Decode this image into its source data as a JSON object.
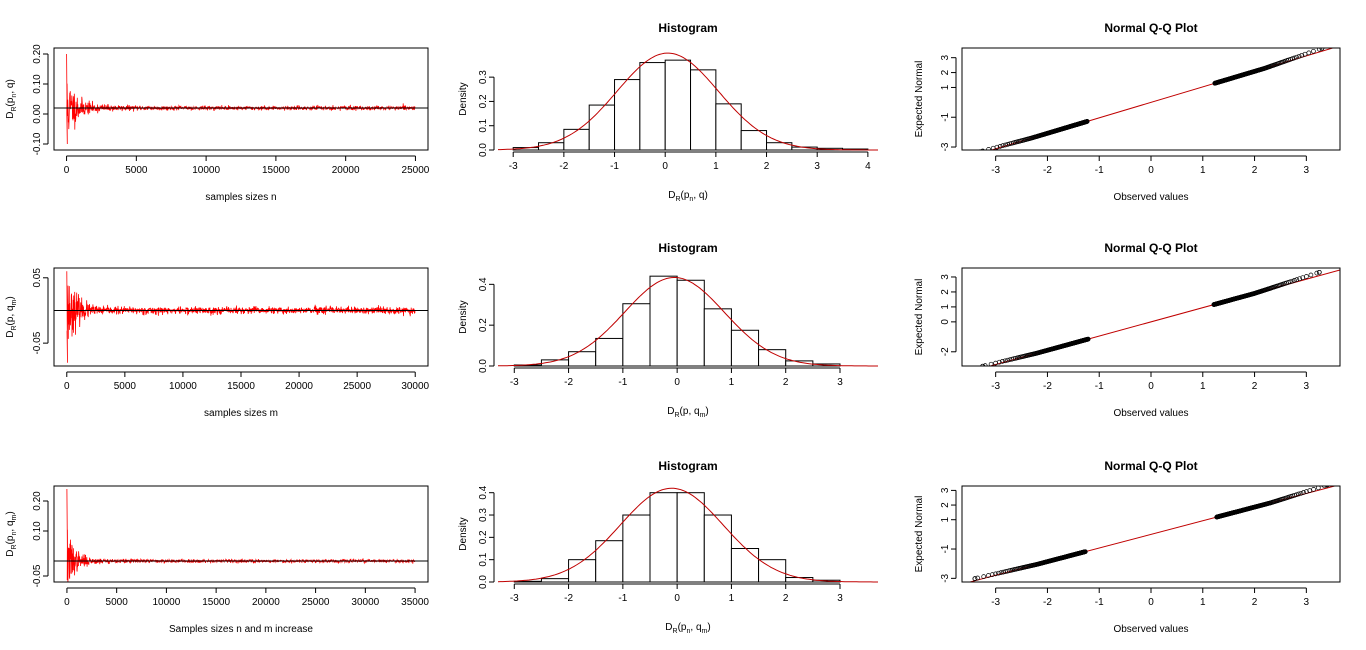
{
  "chart_data": [
    {
      "type": "line",
      "panel": "r1c1",
      "title": "",
      "xlabel": "samples sizes n",
      "ylabel_parts": [
        "D",
        "R",
        "(p",
        "n",
        ", q)"
      ],
      "xlim": [
        -900,
        25900
      ],
      "ylim": [
        -0.12,
        0.22
      ],
      "xticks": [
        0,
        5000,
        10000,
        15000,
        20000,
        25000
      ],
      "yticks": [
        -0.1,
        0.0,
        0.1,
        0.2
      ],
      "ytick_labels": [
        "-0.10",
        "0.00",
        "0.10",
        "0.20"
      ],
      "ref_line_y": 0.02,
      "series": {
        "n_max": 25000,
        "center": 0.02,
        "start": 0.2,
        "min": -0.1,
        "amp0": 0.09,
        "decay": 600,
        "floor": 0.006,
        "seed": 11
      },
      "colors": {
        "series": "#ff0000",
        "ref": "#000000"
      }
    },
    {
      "type": "bar",
      "panel": "r1c2",
      "title": "Histogram",
      "xlabel_parts": [
        "D",
        "R",
        "(p",
        "n",
        ", q)"
      ],
      "ylabel": "Density",
      "xlim": [
        -3.3,
        4.2
      ],
      "ylim": [
        0,
        0.42
      ],
      "xticks": [
        -3,
        -2,
        -1,
        0,
        1,
        2,
        3,
        4
      ],
      "yticks": [
        0,
        0.1,
        0.2,
        0.3
      ],
      "ytick_labels": [
        "0.0",
        "0.1",
        "0.2",
        "0.3"
      ],
      "bin_edges": [
        -3,
        -2.5,
        -2,
        -1.5,
        -1,
        -0.5,
        0,
        0.5,
        1,
        1.5,
        2,
        2.5,
        3,
        3.5,
        4
      ],
      "densities": [
        0.01,
        0.03,
        0.085,
        0.185,
        0.29,
        0.36,
        0.37,
        0.33,
        0.19,
        0.08,
        0.03,
        0.012,
        0.007,
        0.004
      ],
      "density_curve": {
        "mean": 0.05,
        "sd": 1.0,
        "x_range": [
          -3.3,
          4.2
        ]
      },
      "colors": {
        "bars": "#ffffff",
        "curve": "#c00000"
      }
    },
    {
      "type": "scatter",
      "panel": "r1c3",
      "title": "Normal Q-Q Plot",
      "xlabel": "Observed values",
      "ylabel": "Expected Normal",
      "xlim": [
        -3.65,
        3.65
      ],
      "ylim": [
        -3.2,
        3.65
      ],
      "xticks": [
        -3,
        -2,
        -1,
        0,
        1,
        2,
        3
      ],
      "yticks": [
        -3,
        -1,
        1,
        2,
        3
      ],
      "ref_line": {
        "slope": 1.04,
        "intercept": 0.0
      },
      "points": {
        "x_min": -3.3,
        "x_max": 3.3,
        "lower_bend": -2.3,
        "upper_bend": 2.2
      },
      "colors": {
        "points": "#000000",
        "line": "#c00000"
      }
    },
    {
      "type": "line",
      "panel": "r2c1",
      "title": "",
      "xlabel": "samples sizes m",
      "ylabel_parts": [
        "D",
        "R",
        "(p, q",
        "m",
        ")"
      ],
      "xlim": [
        -1100,
        31100
      ],
      "ylim": [
        -0.085,
        0.065
      ],
      "xticks": [
        0,
        5000,
        10000,
        15000,
        20000,
        25000,
        30000
      ],
      "yticks": [
        -0.05,
        0.05
      ],
      "ytick_labels": [
        "-0.05",
        "0.05"
      ],
      "ref_line_y": 0.0,
      "series": {
        "n_max": 30000,
        "center": 0.0,
        "start": 0.06,
        "min": -0.08,
        "amp0": 0.04,
        "decay": 900,
        "floor": 0.005,
        "seed": 23
      },
      "colors": {
        "series": "#ff0000",
        "ref": "#000000"
      }
    },
    {
      "type": "bar",
      "panel": "r2c2",
      "title": "Histogram",
      "xlabel_parts": [
        "D",
        "R",
        "(p, q",
        "m",
        ")"
      ],
      "ylabel": "Density",
      "xlim": [
        -3.3,
        3.7
      ],
      "ylim": [
        0,
        0.48
      ],
      "xticks": [
        -3,
        -2,
        -1,
        0,
        1,
        2,
        3
      ],
      "yticks": [
        0,
        0.2,
        0.4
      ],
      "ytick_labels": [
        "0.0",
        "0.2",
        "0.4"
      ],
      "bin_edges": [
        -3,
        -2.5,
        -2,
        -1.5,
        -1,
        -0.5,
        0,
        0.5,
        1,
        1.5,
        2,
        2.5,
        3
      ],
      "densities": [
        0.005,
        0.03,
        0.07,
        0.135,
        0.305,
        0.44,
        0.42,
        0.28,
        0.175,
        0.08,
        0.025,
        0.01
      ],
      "density_curve": {
        "mean": -0.05,
        "sd": 0.92,
        "x_range": [
          -3.3,
          3.7
        ]
      },
      "colors": {
        "bars": "#ffffff",
        "curve": "#c00000"
      }
    },
    {
      "type": "scatter",
      "panel": "r2c3",
      "title": "Normal Q-Q Plot",
      "xlabel": "Observed values",
      "ylabel": "Expected Normal",
      "xlim": [
        -3.65,
        3.65
      ],
      "ylim": [
        -2.95,
        3.6
      ],
      "xticks": [
        -3,
        -2,
        -1,
        0,
        1,
        2,
        3
      ],
      "yticks": [
        -2,
        0,
        1,
        2,
        3
      ],
      "ref_line": {
        "slope": 0.95,
        "intercept": 0.0
      },
      "points": {
        "x_min": -3.25,
        "x_max": 3.25,
        "lower_bend": -2.2,
        "upper_bend": 2.0
      },
      "colors": {
        "points": "#000000",
        "line": "#c00000"
      }
    },
    {
      "type": "line",
      "panel": "r3c1",
      "title": "",
      "xlabel": "Samples sizes n and m increase",
      "ylabel_parts": [
        "D",
        "R",
        "(p",
        "n",
        ", q",
        "m",
        ")"
      ],
      "xlim": [
        -1300,
        36300
      ],
      "ylim": [
        -0.07,
        0.25
      ],
      "xticks": [
        0,
        5000,
        10000,
        15000,
        20000,
        25000,
        30000,
        35000
      ],
      "yticks": [
        -0.05,
        0.1,
        0.2
      ],
      "ytick_labels": [
        "-0.05",
        "0.10",
        "0.20"
      ],
      "ref_line_y": 0.0,
      "series": {
        "n_max": 35000,
        "center": 0.0,
        "start": 0.24,
        "min": -0.06,
        "amp0": 0.08,
        "decay": 700,
        "floor": 0.005,
        "seed": 37
      },
      "colors": {
        "series": "#ff0000",
        "ref": "#000000"
      }
    },
    {
      "type": "bar",
      "panel": "r3c2",
      "title": "Histogram",
      "xlabel_parts": [
        "D",
        "R",
        "(p",
        "n",
        ", q",
        "m",
        ")"
      ],
      "ylabel": "Density",
      "xlim": [
        -3.3,
        3.7
      ],
      "ylim": [
        0,
        0.43
      ],
      "xticks": [
        -3,
        -2,
        -1,
        0,
        1,
        2,
        3
      ],
      "yticks": [
        0,
        0.1,
        0.2,
        0.3,
        0.4
      ],
      "ytick_labels": [
        "0.0",
        "0.1",
        "0.2",
        "0.3",
        "0.4"
      ],
      "bin_edges": [
        -3,
        -2.5,
        -2,
        -1.5,
        -1,
        -0.5,
        0,
        0.5,
        1,
        1.5,
        2,
        2.5,
        3
      ],
      "densities": [
        0.003,
        0.015,
        0.1,
        0.185,
        0.3,
        0.4,
        0.4,
        0.3,
        0.15,
        0.1,
        0.02,
        0.008
      ],
      "density_curve": {
        "mean": -0.1,
        "sd": 0.95,
        "x_range": [
          -3.3,
          3.7
        ]
      },
      "colors": {
        "bars": "#ffffff",
        "curve": "#c00000"
      }
    },
    {
      "type": "scatter",
      "panel": "r3c3",
      "title": "Normal Q-Q Plot",
      "xlabel": "Observed values",
      "ylabel": "Expected Normal",
      "xlim": [
        -3.65,
        3.65
      ],
      "ylim": [
        -3.25,
        3.3
      ],
      "xticks": [
        -3,
        -2,
        -1,
        0,
        1,
        2,
        3
      ],
      "yticks": [
        -3,
        -1,
        1,
        2,
        3
      ],
      "ref_line": {
        "slope": 0.93,
        "intercept": 0.0
      },
      "points": {
        "x_min": -3.4,
        "x_max": 3.4,
        "lower_bend": -2.2,
        "upper_bend": 2.3
      },
      "colors": {
        "points": "#000000",
        "line": "#c00000"
      }
    }
  ]
}
